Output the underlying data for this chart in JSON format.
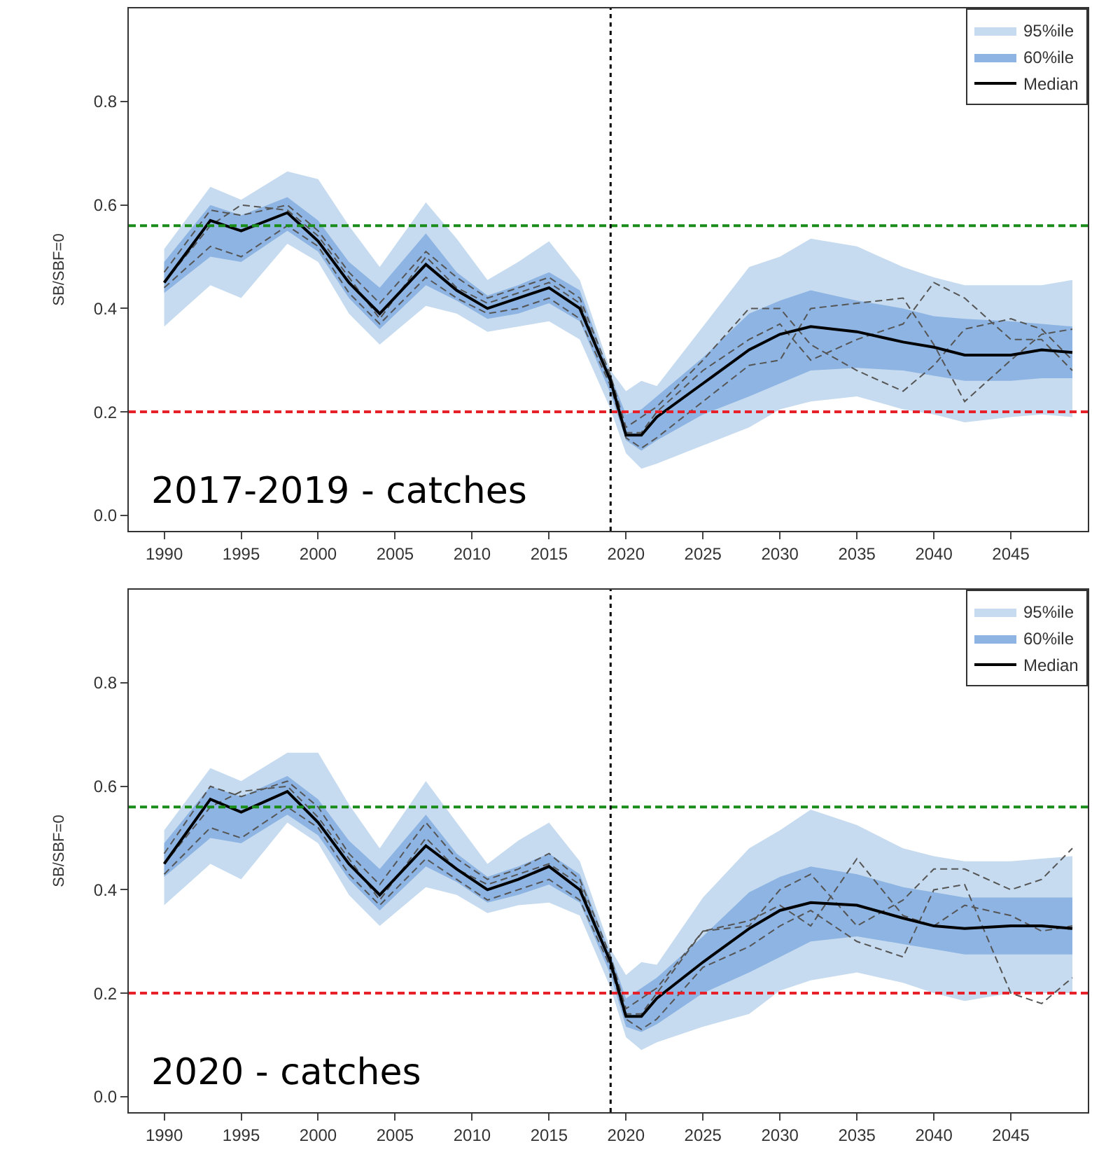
{
  "chart_data": [
    {
      "type": "line",
      "ylabel": "SB/SBF=0",
      "annotations": [
        "2017-2019 - catches"
      ],
      "legend": "top right",
      "grid": false,
      "marker": "none",
      "x": [
        1990,
        1993,
        1995,
        1998,
        2000,
        2002,
        2004,
        2007,
        2009,
        2011,
        2013,
        2015,
        2017,
        2019,
        2020,
        2021,
        2022,
        2025,
        2028,
        2030,
        2032,
        2035,
        2038,
        2040,
        2042,
        2045,
        2047,
        2049
      ],
      "xlim": [
        1987.7,
        2050
      ],
      "xticks": [
        1990,
        1995,
        2000,
        2005,
        2010,
        2015,
        2020,
        2025,
        2030,
        2035,
        2040,
        2045
      ],
      "ylim": [
        -0.03,
        0.98
      ],
      "yticks": [
        {
          "value": 0,
          "label": "0.0"
        },
        0.2,
        0.4,
        0.6,
        0.8
      ],
      "series": [
        {
          "name": "95%ile",
          "type": "line",
          "color": "#c6dbef",
          "values": [
            null,
            null,
            null,
            null,
            null,
            null,
            null,
            null,
            null,
            null,
            null,
            null,
            null,
            null,
            null,
            null,
            null,
            null,
            null,
            null,
            null,
            null,
            null,
            null,
            null,
            null,
            null,
            null
          ],
          "upper": [
            0.515,
            0.635,
            0.61,
            0.665,
            0.65,
            0.56,
            0.48,
            0.605,
            0.535,
            0.455,
            0.49,
            0.53,
            0.455,
            0.28,
            0.24,
            0.26,
            0.25,
            0.365,
            0.48,
            0.5,
            0.535,
            0.52,
            0.48,
            0.46,
            0.445,
            0.445,
            0.445,
            0.455
          ],
          "lower": [
            0.365,
            0.445,
            0.42,
            0.525,
            0.49,
            0.39,
            0.33,
            0.405,
            0.39,
            0.355,
            0.365,
            0.375,
            0.34,
            0.205,
            0.12,
            0.09,
            0.1,
            0.135,
            0.17,
            0.205,
            0.22,
            0.23,
            0.205,
            0.195,
            0.18,
            0.19,
            0.195,
            0.19
          ]
        },
        {
          "name": "60%ile",
          "type": "line",
          "color": "#8db4e2",
          "values": [
            null,
            null,
            null,
            null,
            null,
            null,
            null,
            null,
            null,
            null,
            null,
            null,
            null,
            null,
            null,
            null,
            null,
            null,
            null,
            null,
            null,
            null,
            null,
            null,
            null,
            null,
            null,
            null
          ],
          "upper": [
            0.49,
            0.6,
            0.58,
            0.615,
            0.57,
            0.49,
            0.44,
            0.545,
            0.47,
            0.425,
            0.445,
            0.47,
            0.435,
            0.27,
            0.195,
            0.205,
            0.23,
            0.305,
            0.39,
            0.415,
            0.435,
            0.415,
            0.4,
            0.385,
            0.38,
            0.375,
            0.37,
            0.365
          ],
          "lower": [
            0.43,
            0.5,
            0.49,
            0.55,
            0.51,
            0.42,
            0.36,
            0.445,
            0.415,
            0.38,
            0.39,
            0.41,
            0.375,
            0.235,
            0.145,
            0.125,
            0.145,
            0.195,
            0.23,
            0.255,
            0.28,
            0.285,
            0.28,
            0.27,
            0.26,
            0.26,
            0.265,
            0.265
          ]
        },
        {
          "color": "#555555",
          "line_style": "dashed",
          "values": [
            0.47,
            0.59,
            0.58,
            0.6,
            0.55,
            0.47,
            0.41,
            0.51,
            0.46,
            0.42,
            0.44,
            0.46,
            0.42,
            0.27,
            0.17,
            0.19,
            0.21,
            0.3,
            0.4,
            0.4,
            0.33,
            0.28,
            0.24,
            0.29,
            0.36,
            0.38,
            0.36,
            0.3
          ]
        },
        {
          "color": "#555555",
          "line_style": "dashed",
          "values": [
            0.44,
            0.52,
            0.5,
            0.56,
            0.52,
            0.43,
            0.37,
            0.46,
            0.42,
            0.39,
            0.4,
            0.42,
            0.38,
            0.25,
            0.15,
            0.13,
            0.15,
            0.22,
            0.29,
            0.3,
            0.4,
            0.41,
            0.42,
            0.33,
            0.22,
            0.3,
            0.35,
            0.36
          ]
        },
        {
          "color": "#555555",
          "line_style": "dashed",
          "values": [
            0.45,
            0.56,
            0.6,
            0.59,
            0.54,
            0.46,
            0.38,
            0.5,
            0.44,
            0.41,
            0.43,
            0.45,
            0.41,
            0.26,
            0.16,
            0.16,
            0.2,
            0.28,
            0.34,
            0.37,
            0.3,
            0.34,
            0.37,
            0.45,
            0.42,
            0.34,
            0.34,
            0.28
          ]
        },
        {
          "name": "Median",
          "type": "line",
          "color": "#000000",
          "line_style": "solid",
          "values": [
            0.45,
            0.57,
            0.55,
            0.585,
            0.53,
            0.45,
            0.39,
            0.485,
            0.435,
            0.4,
            0.42,
            0.44,
            0.4,
            0.26,
            0.155,
            0.155,
            0.19,
            0.255,
            0.32,
            0.35,
            0.365,
            0.355,
            0.335,
            0.325,
            0.31,
            0.31,
            0.32,
            0.315
          ]
        }
      ],
      "ref_lines": [
        {
          "axis": "y",
          "value": 0.56,
          "color": "#1a8c1a",
          "line_style": "dashed"
        },
        {
          "axis": "y",
          "value": 0.2,
          "color": "#e8202a",
          "line_style": "dashed"
        },
        {
          "axis": "x",
          "value": 2019,
          "color": "#000000",
          "line_style": "dotted"
        }
      ]
    },
    {
      "type": "line",
      "ylabel": "SB/SBF=0",
      "annotations": [
        "2020 - catches"
      ],
      "legend": "top right",
      "grid": false,
      "marker": "none",
      "x": [
        1990,
        1993,
        1995,
        1998,
        2000,
        2002,
        2004,
        2007,
        2009,
        2011,
        2013,
        2015,
        2017,
        2019,
        2020,
        2021,
        2022,
        2025,
        2028,
        2030,
        2032,
        2035,
        2038,
        2040,
        2042,
        2045,
        2047,
        2049
      ],
      "xlim": [
        1987.7,
        2050
      ],
      "xticks": [
        1990,
        1995,
        2000,
        2005,
        2010,
        2015,
        2020,
        2025,
        2030,
        2035,
        2040,
        2045
      ],
      "ylim": [
        -0.03,
        0.98
      ],
      "yticks": [
        {
          "value": 0,
          "label": "0.0"
        },
        0.2,
        0.4,
        0.6,
        0.8
      ],
      "series": [
        {
          "name": "95%ile",
          "type": "line",
          "color": "#c6dbef",
          "values": [
            null,
            null,
            null,
            null,
            null,
            null,
            null,
            null,
            null,
            null,
            null,
            null,
            null,
            null,
            null,
            null,
            null,
            null,
            null,
            null,
            null,
            null,
            null,
            null,
            null,
            null,
            null,
            null
          ],
          "upper": [
            0.515,
            0.635,
            0.61,
            0.665,
            0.665,
            0.565,
            0.48,
            0.61,
            0.53,
            0.45,
            0.495,
            0.53,
            0.455,
            0.285,
            0.235,
            0.26,
            0.255,
            0.385,
            0.48,
            0.515,
            0.555,
            0.525,
            0.48,
            0.465,
            0.455,
            0.455,
            0.46,
            0.465
          ],
          "lower": [
            0.37,
            0.45,
            0.42,
            0.53,
            0.49,
            0.39,
            0.33,
            0.405,
            0.39,
            0.355,
            0.37,
            0.375,
            0.35,
            0.21,
            0.115,
            0.09,
            0.105,
            0.135,
            0.16,
            0.205,
            0.225,
            0.24,
            0.22,
            0.2,
            0.185,
            0.2,
            0.2,
            0.2
          ]
        },
        {
          "name": "60%ile",
          "type": "line",
          "color": "#8db4e2",
          "values": [
            null,
            null,
            null,
            null,
            null,
            null,
            null,
            null,
            null,
            null,
            null,
            null,
            null,
            null,
            null,
            null,
            null,
            null,
            null,
            null,
            null,
            null,
            null,
            null,
            null,
            null,
            null,
            null
          ],
          "upper": [
            0.49,
            0.6,
            0.58,
            0.62,
            0.575,
            0.495,
            0.44,
            0.545,
            0.47,
            0.425,
            0.445,
            0.47,
            0.43,
            0.275,
            0.19,
            0.21,
            0.23,
            0.31,
            0.395,
            0.425,
            0.445,
            0.43,
            0.405,
            0.395,
            0.385,
            0.385,
            0.385,
            0.385
          ],
          "lower": [
            0.425,
            0.5,
            0.49,
            0.545,
            0.505,
            0.42,
            0.36,
            0.445,
            0.415,
            0.375,
            0.39,
            0.41,
            0.375,
            0.235,
            0.135,
            0.125,
            0.14,
            0.2,
            0.24,
            0.27,
            0.3,
            0.31,
            0.295,
            0.285,
            0.275,
            0.275,
            0.275,
            0.275
          ]
        },
        {
          "color": "#555555",
          "line_style": "dashed",
          "values": [
            0.47,
            0.6,
            0.58,
            0.61,
            0.56,
            0.47,
            0.41,
            0.53,
            0.46,
            0.42,
            0.44,
            0.47,
            0.42,
            0.27,
            0.17,
            0.19,
            0.21,
            0.32,
            0.33,
            0.4,
            0.43,
            0.33,
            0.38,
            0.44,
            0.44,
            0.4,
            0.42,
            0.48
          ]
        },
        {
          "color": "#555555",
          "line_style": "dashed",
          "values": [
            0.43,
            0.52,
            0.5,
            0.56,
            0.52,
            0.43,
            0.37,
            0.46,
            0.42,
            0.38,
            0.4,
            0.42,
            0.38,
            0.25,
            0.15,
            0.13,
            0.15,
            0.25,
            0.29,
            0.33,
            0.36,
            0.3,
            0.27,
            0.4,
            0.41,
            0.2,
            0.18,
            0.23
          ]
        },
        {
          "color": "#555555",
          "line_style": "dashed",
          "values": [
            0.45,
            0.56,
            0.59,
            0.6,
            0.54,
            0.46,
            0.38,
            0.5,
            0.44,
            0.41,
            0.43,
            0.45,
            0.41,
            0.26,
            0.16,
            0.16,
            0.2,
            0.32,
            0.34,
            0.37,
            0.33,
            0.46,
            0.35,
            0.33,
            0.37,
            0.35,
            0.32,
            0.33
          ]
        },
        {
          "name": "Median",
          "type": "line",
          "color": "#000000",
          "line_style": "solid",
          "values": [
            0.45,
            0.575,
            0.55,
            0.59,
            0.53,
            0.45,
            0.39,
            0.485,
            0.44,
            0.4,
            0.42,
            0.445,
            0.4,
            0.26,
            0.155,
            0.155,
            0.19,
            0.26,
            0.325,
            0.36,
            0.375,
            0.37,
            0.345,
            0.33,
            0.325,
            0.33,
            0.33,
            0.325
          ]
        }
      ],
      "ref_lines": [
        {
          "axis": "y",
          "value": 0.56,
          "color": "#1a8c1a",
          "line_style": "dashed"
        },
        {
          "axis": "y",
          "value": 0.2,
          "color": "#e8202a",
          "line_style": "dashed"
        },
        {
          "axis": "x",
          "value": 2019,
          "color": "#000000",
          "line_style": "dotted"
        }
      ]
    }
  ]
}
